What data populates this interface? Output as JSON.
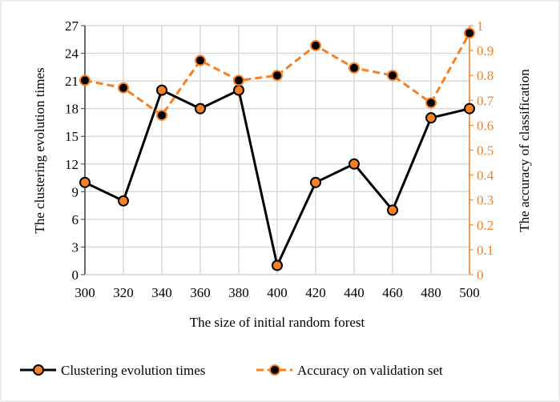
{
  "chart_data": {
    "type": "line",
    "xlabel": "The size of initial random forest",
    "ylabel": "The clustering evolution times",
    "y2label": "The accuracy of classification",
    "x": [
      300,
      320,
      340,
      360,
      380,
      400,
      420,
      440,
      460,
      480,
      500
    ],
    "ylim": [
      0,
      27
    ],
    "yticks": [
      0,
      3,
      6,
      9,
      12,
      15,
      18,
      21,
      24,
      27
    ],
    "y2lim": [
      0,
      1
    ],
    "y2ticks": [
      "0",
      "0.1",
      "0.2",
      "0.3",
      "0.4",
      "0.5",
      "0.6",
      "0.7",
      "0.8",
      "0.9",
      "1"
    ],
    "grid": true,
    "legend": "bottom",
    "series": [
      {
        "name": "Clustering evolution times",
        "axis": "left",
        "color": "#000000",
        "marker_fill": "#F58025",
        "style": "solid",
        "values": [
          10,
          8,
          20,
          18,
          20,
          1,
          10,
          12,
          7,
          17,
          18
        ]
      },
      {
        "name": "Accuracy on validation set",
        "axis": "right",
        "color": "#F58025",
        "marker_fill": "#000000",
        "style": "dashed",
        "values": [
          0.78,
          0.75,
          0.64,
          0.86,
          0.78,
          0.8,
          0.92,
          0.83,
          0.8,
          0.69,
          0.97
        ]
      }
    ]
  }
}
